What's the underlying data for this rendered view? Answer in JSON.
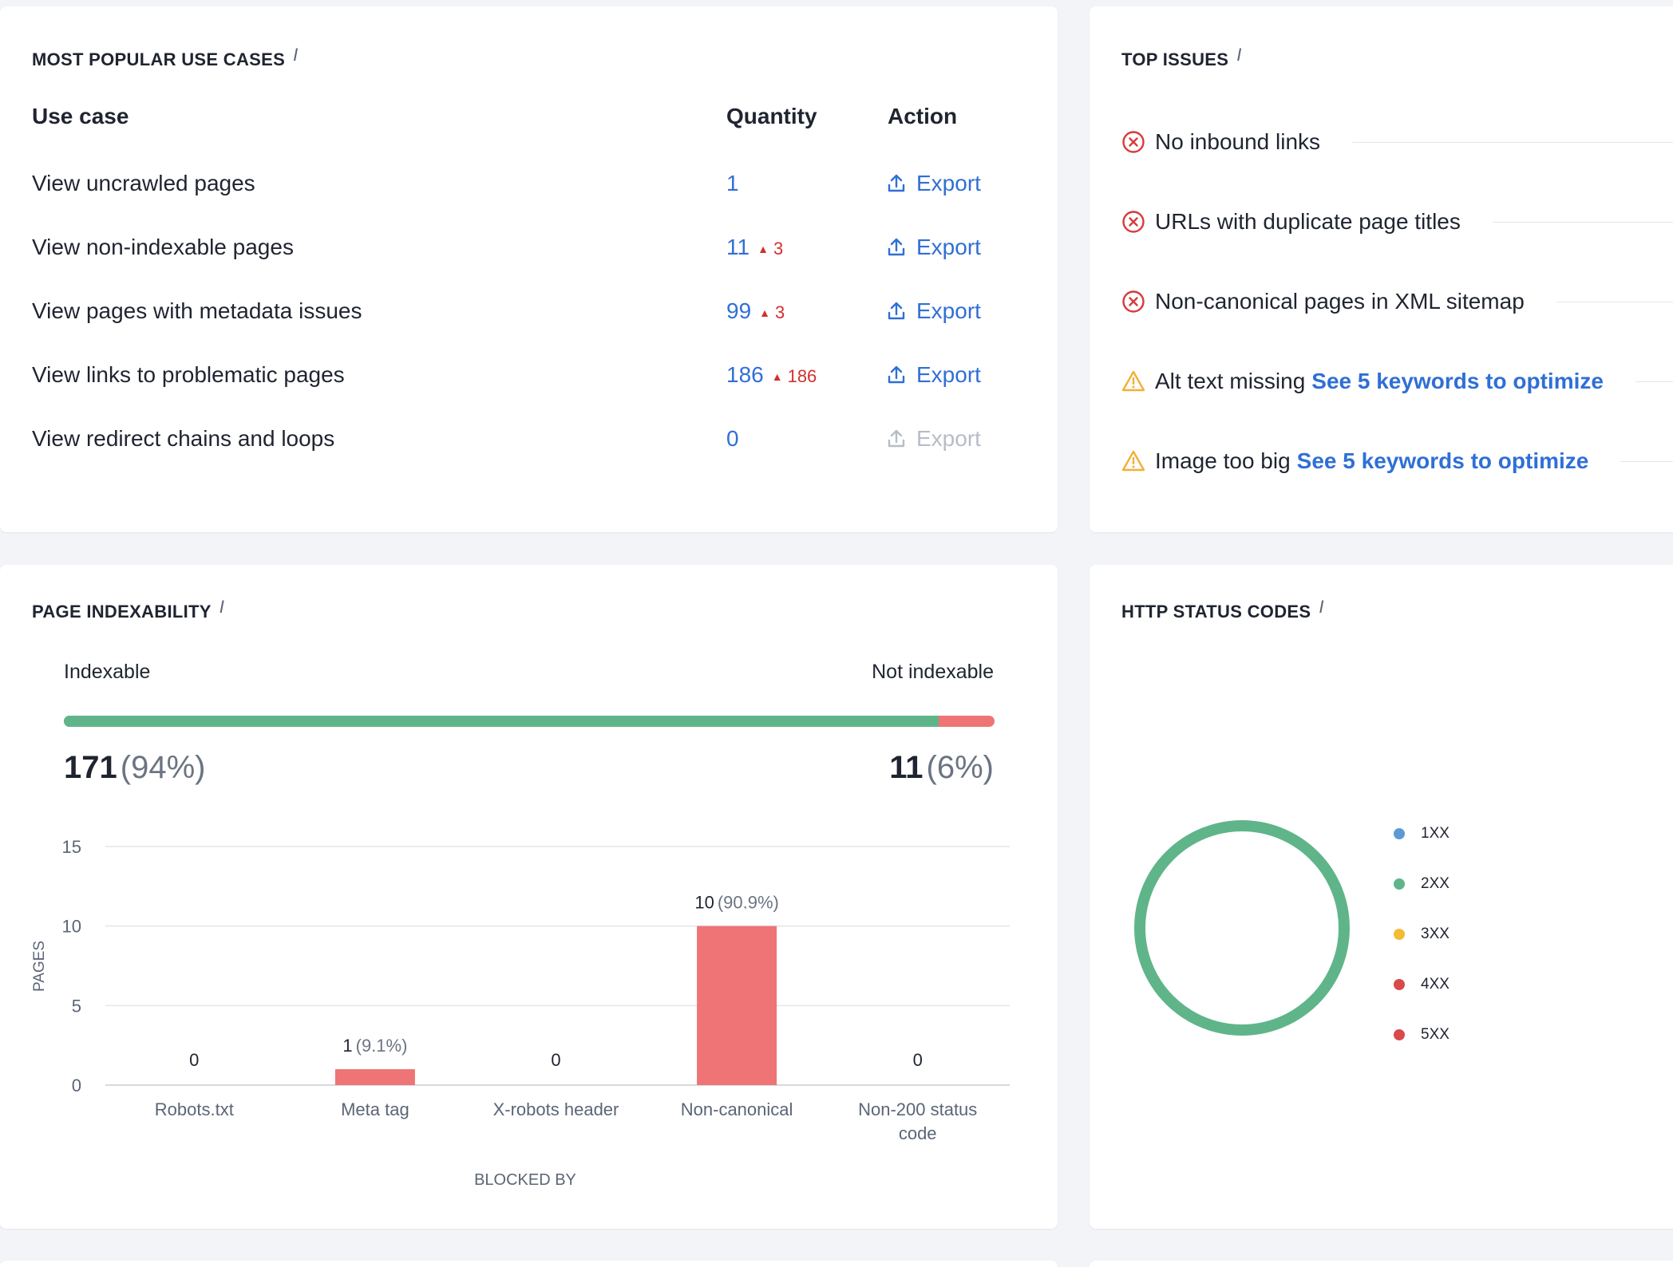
{
  "use_cases": {
    "title": "MOST POPULAR USE CASES",
    "info": "i",
    "col_use_case": "Use case",
    "col_quantity": "Quantity",
    "col_action": "Action",
    "rows": [
      {
        "name": "View uncrawled pages",
        "qty": "1",
        "delta": "",
        "action": "Export",
        "enabled": true
      },
      {
        "name": "View non-indexable pages",
        "qty": "11",
        "delta": "3",
        "action": "Export",
        "enabled": true
      },
      {
        "name": "View pages with metadata issues",
        "qty": "99",
        "delta": "3",
        "action": "Export",
        "enabled": true
      },
      {
        "name": "View links to problematic pages",
        "qty": "186",
        "delta": "186",
        "action": "Export",
        "enabled": true
      },
      {
        "name": "View redirect chains and loops",
        "qty": "0",
        "delta": "",
        "action": "Export",
        "enabled": false
      }
    ]
  },
  "top_issues": {
    "title": "TOP ISSUES",
    "info": "i",
    "items": [
      {
        "severity": "error",
        "icon": "error-circle-icon",
        "text": "No inbound links",
        "link": ""
      },
      {
        "severity": "error",
        "icon": "error-circle-icon",
        "text": "URLs with duplicate page titles",
        "link": ""
      },
      {
        "severity": "error",
        "icon": "error-circle-icon",
        "text": "Non-canonical pages in XML sitemap",
        "link": ""
      },
      {
        "severity": "warning",
        "icon": "warning-triangle-icon",
        "text": "Alt text missing",
        "link": "See 5 keywords to optimize"
      },
      {
        "severity": "warning",
        "icon": "warning-triangle-icon",
        "text": "Image too big",
        "link": "See 5 keywords to optimize"
      }
    ]
  },
  "indexability": {
    "title": "PAGE INDEXABILITY",
    "info": "i",
    "indexable_label": "Indexable",
    "not_indexable_label": "Not indexable",
    "indexable_count": "171",
    "indexable_pct": "(94%)",
    "not_indexable_count": "11",
    "not_indexable_pct": "(6%)",
    "indexable_share": 0.94,
    "colors": {
      "indexable": "#5fb589",
      "not_indexable": "#ee7476"
    }
  },
  "chart_data": {
    "type": "bar",
    "title": "",
    "xlabel": "BLOCKED BY",
    "ylabel": "PAGES",
    "ylim": [
      0,
      15
    ],
    "yticks": [
      0,
      5,
      10,
      15
    ],
    "categories": [
      "Robots.txt",
      "Meta tag",
      "X-robots header",
      "Non-canonical",
      "Non-200 status code"
    ],
    "values": [
      0,
      1,
      0,
      10,
      0
    ],
    "value_labels": [
      "0",
      "1",
      "0",
      "10",
      "0"
    ],
    "pct_labels": [
      "",
      "(9.1%)",
      "",
      "(90.9%)",
      ""
    ],
    "bar_color": "#ee7476",
    "grid": true
  },
  "http_status": {
    "title": "HTTP STATUS CODES",
    "info": "i",
    "donut": [
      {
        "label": "2XX",
        "value": 1
      }
    ],
    "legend": [
      {
        "label": "1XX",
        "color": "#5b9bd5"
      },
      {
        "label": "2XX",
        "color": "#5fb589"
      },
      {
        "label": "3XX",
        "color": "#f2bd35"
      },
      {
        "label": "4XX",
        "color": "#d94a4a"
      },
      {
        "label": "5XX",
        "color": "#d94a4a"
      }
    ]
  }
}
